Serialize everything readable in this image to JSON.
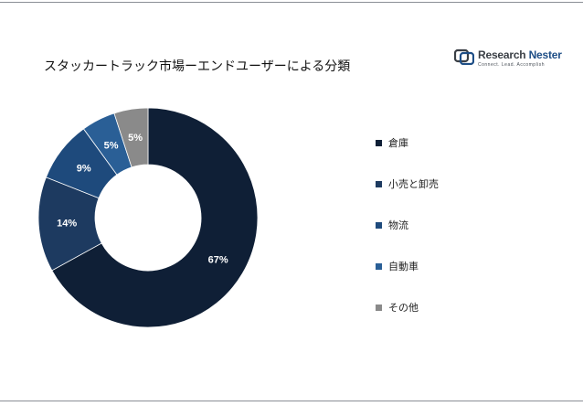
{
  "title": "スタッカートラック市場ーエンドユーザーによる分類",
  "logo": {
    "name_part1": "Research ",
    "name_part2": "Nester",
    "tagline": "Connect. Lead. Accomplish"
  },
  "chart_data": {
    "type": "pie",
    "donut": true,
    "legend_position": "right",
    "categories": [
      "倉庫",
      "小売と卸売",
      "物流",
      "自動車",
      "その他"
    ],
    "values": [
      67,
      14,
      9,
      5,
      5
    ],
    "labels": [
      "67%",
      "14%",
      "9%",
      "5%",
      "5%"
    ],
    "colors": [
      "#0f1f36",
      "#1d3a60",
      "#1e4a7c",
      "#2a5f96",
      "#8a8a8a"
    ]
  }
}
